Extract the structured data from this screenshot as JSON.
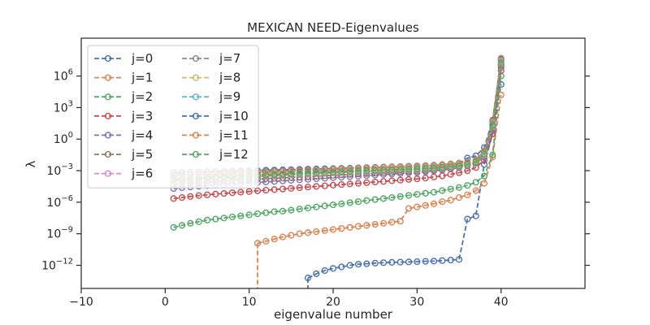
{
  "chart_data": {
    "type": "line",
    "title": "MEXICAN NEED-Eigenvalues",
    "xlabel": "eigenvalue number",
    "ylabel": "λ",
    "yscale": "log",
    "xlim": [
      -10,
      50
    ],
    "ylim_log10": [
      -14.2,
      9.6
    ],
    "x_ticks": [
      -10,
      0,
      10,
      20,
      30,
      40
    ],
    "x_tick_labels": [
      "−10",
      "0",
      "10",
      "20",
      "30",
      "40"
    ],
    "y_ticks_log10": [
      -12,
      -9,
      -6,
      -3,
      0,
      3,
      6
    ],
    "y_tick_labels": [
      {
        "base": "10",
        "exp": "−12"
      },
      {
        "base": "10",
        "exp": "−9"
      },
      {
        "base": "10",
        "exp": "−6"
      },
      {
        "base": "10",
        "exp": "−3"
      },
      {
        "base": "10",
        "exp": "0"
      },
      {
        "base": "10",
        "exp": "3"
      },
      {
        "base": "10",
        "exp": "6"
      }
    ],
    "grid": false,
    "legend_position": "upper-left",
    "legend_columns": 2,
    "marker": "open-circle",
    "line_style": "dashed",
    "series": [
      {
        "name": "j=0",
        "color": "#4c72b0",
        "x": [
          17,
          18,
          19,
          20,
          21,
          22,
          23,
          24,
          25,
          26,
          27,
          28,
          29,
          30,
          31,
          32,
          33,
          34,
          35,
          36,
          37,
          38,
          39,
          40
        ],
        "log10_values": [
          -13.2,
          -12.8,
          -12.5,
          -12.3,
          -12.15,
          -12.0,
          -11.9,
          -11.85,
          -11.8,
          -11.75,
          -11.72,
          -11.7,
          -11.68,
          -11.65,
          -11.62,
          -11.6,
          -11.55,
          -11.5,
          -11.45,
          -7.6,
          -7.3,
          -2.4,
          0.5,
          5.2
        ]
      },
      {
        "name": "j=1",
        "color": "#dd8452",
        "x": [
          11,
          12,
          13,
          14,
          15,
          16,
          17,
          18,
          19,
          20,
          21,
          22,
          23,
          24,
          25,
          26,
          27,
          28,
          29,
          30,
          31,
          32,
          33,
          34,
          35,
          36,
          37,
          38,
          39,
          40
        ],
        "log10_values": [
          -9.9,
          -9.7,
          -9.5,
          -9.3,
          -9.15,
          -9.0,
          -8.9,
          -8.8,
          -8.7,
          -8.6,
          -8.5,
          -8.4,
          -8.3,
          -8.2,
          -8.1,
          -8.0,
          -7.9,
          -7.8,
          -6.6,
          -6.45,
          -6.3,
          -6.15,
          -5.95,
          -5.8,
          -5.55,
          -5.3,
          -4.9,
          -4.2,
          -1.7,
          4.2
        ]
      },
      {
        "name": "j=2",
        "color": "#55a868",
        "x": [
          1,
          2,
          3,
          4,
          5,
          6,
          7,
          8,
          9,
          10,
          11,
          12,
          13,
          14,
          15,
          16,
          17,
          18,
          19,
          20,
          21,
          22,
          23,
          24,
          25,
          26,
          27,
          28,
          29,
          30,
          31,
          32,
          33,
          34,
          35,
          36,
          37,
          38,
          39,
          40
        ],
        "log10_values": [
          -8.4,
          -8.2,
          -8.0,
          -7.85,
          -7.7,
          -7.6,
          -7.5,
          -7.4,
          -7.3,
          -7.2,
          -7.1,
          -7.0,
          -6.9,
          -6.85,
          -6.75,
          -6.65,
          -6.55,
          -6.45,
          -6.35,
          -6.25,
          -6.15,
          -6.05,
          -5.95,
          -5.85,
          -5.75,
          -5.65,
          -5.55,
          -5.45,
          -5.35,
          -5.25,
          -5.15,
          -5.05,
          -4.9,
          -4.75,
          -4.6,
          -4.4,
          -4.1,
          -3.5,
          -1.5,
          6.0
        ]
      },
      {
        "name": "j=3",
        "color": "#c44e52",
        "x": [
          1,
          2,
          3,
          4,
          5,
          6,
          7,
          8,
          9,
          10,
          11,
          12,
          13,
          14,
          15,
          16,
          17,
          18,
          19,
          20,
          21,
          22,
          23,
          24,
          25,
          26,
          27,
          28,
          29,
          30,
          31,
          32,
          33,
          34,
          35,
          36,
          37,
          38,
          39,
          40
        ],
        "log10_values": [
          -5.65,
          -5.55,
          -5.45,
          -5.37,
          -5.3,
          -5.23,
          -5.17,
          -5.1,
          -5.04,
          -4.98,
          -4.92,
          -4.86,
          -4.8,
          -4.74,
          -4.68,
          -4.62,
          -4.56,
          -4.5,
          -4.44,
          -4.38,
          -4.32,
          -4.26,
          -4.2,
          -4.14,
          -4.08,
          -4.02,
          -3.96,
          -3.9,
          -3.84,
          -3.78,
          -3.7,
          -3.6,
          -3.5,
          -3.35,
          -3.2,
          -3.0,
          -2.7,
          -2.0,
          0.5,
          6.5
        ]
      },
      {
        "name": "j=4",
        "color": "#8172b3",
        "x": [
          1,
          2,
          3,
          4,
          5,
          6,
          7,
          8,
          9,
          10,
          11,
          12,
          13,
          14,
          15,
          16,
          17,
          18,
          19,
          20,
          21,
          22,
          23,
          24,
          25,
          26,
          27,
          28,
          29,
          30,
          31,
          32,
          33,
          34,
          35,
          36,
          37,
          38,
          39,
          40
        ],
        "log10_values": [
          -4.7,
          -4.62,
          -4.55,
          -4.48,
          -4.42,
          -4.37,
          -4.32,
          -4.27,
          -4.22,
          -4.17,
          -4.12,
          -4.07,
          -4.02,
          -3.97,
          -3.92,
          -3.87,
          -3.82,
          -3.77,
          -3.72,
          -3.67,
          -3.62,
          -3.57,
          -3.52,
          -3.47,
          -3.42,
          -3.37,
          -3.32,
          -3.27,
          -3.22,
          -3.17,
          -3.1,
          -3.02,
          -2.94,
          -2.85,
          -2.72,
          -2.55,
          -2.3,
          -1.7,
          0.8,
          6.8
        ]
      },
      {
        "name": "j=5",
        "color": "#937860",
        "x": [
          1,
          2,
          3,
          4,
          5,
          6,
          7,
          8,
          9,
          10,
          11,
          12,
          13,
          14,
          15,
          16,
          17,
          18,
          19,
          20,
          21,
          22,
          23,
          24,
          25,
          26,
          27,
          28,
          29,
          30,
          31,
          32,
          33,
          34,
          35,
          36,
          37,
          38,
          39,
          40
        ],
        "log10_values": [
          -4.3,
          -4.24,
          -4.18,
          -4.13,
          -4.08,
          -4.03,
          -3.98,
          -3.93,
          -3.88,
          -3.84,
          -3.8,
          -3.76,
          -3.72,
          -3.68,
          -3.64,
          -3.6,
          -3.56,
          -3.52,
          -3.48,
          -3.44,
          -3.4,
          -3.36,
          -3.32,
          -3.28,
          -3.24,
          -3.2,
          -3.16,
          -3.12,
          -3.08,
          -3.04,
          -2.98,
          -2.92,
          -2.85,
          -2.77,
          -2.66,
          -2.5,
          -2.25,
          -1.6,
          1.0,
          7.0
        ]
      },
      {
        "name": "j=6",
        "color": "#da8bc3",
        "x": [
          1,
          2,
          3,
          4,
          5,
          6,
          7,
          8,
          9,
          10,
          11,
          12,
          13,
          14,
          15,
          16,
          17,
          18,
          19,
          20,
          21,
          22,
          23,
          24,
          25,
          26,
          27,
          28,
          29,
          30,
          31,
          32,
          33,
          34,
          35,
          36,
          37,
          38,
          39,
          40
        ],
        "log10_values": [
          -4.0,
          -3.95,
          -3.9,
          -3.85,
          -3.8,
          -3.76,
          -3.72,
          -3.68,
          -3.64,
          -3.6,
          -3.56,
          -3.52,
          -3.48,
          -3.44,
          -3.4,
          -3.36,
          -3.32,
          -3.28,
          -3.25,
          -3.22,
          -3.19,
          -3.16,
          -3.13,
          -3.1,
          -3.07,
          -3.04,
          -3.01,
          -2.98,
          -2.95,
          -2.92,
          -2.88,
          -2.83,
          -2.77,
          -2.7,
          -2.6,
          -2.45,
          -2.2,
          -1.5,
          1.2,
          7.2
        ]
      },
      {
        "name": "j=7",
        "color": "#8c8c8c",
        "x": [
          1,
          2,
          3,
          4,
          5,
          6,
          7,
          8,
          9,
          10,
          11,
          12,
          13,
          14,
          15,
          16,
          17,
          18,
          19,
          20,
          21,
          22,
          23,
          24,
          25,
          26,
          27,
          28,
          29,
          30,
          31,
          32,
          33,
          34,
          35,
          36,
          37,
          38,
          39,
          40
        ],
        "log10_values": [
          -3.8,
          -3.75,
          -3.7,
          -3.66,
          -3.62,
          -3.58,
          -3.54,
          -3.5,
          -3.46,
          -3.43,
          -3.4,
          -3.37,
          -3.34,
          -3.31,
          -3.28,
          -3.25,
          -3.22,
          -3.19,
          -3.16,
          -3.13,
          -3.1,
          -3.07,
          -3.04,
          -3.01,
          -2.98,
          -2.95,
          -2.92,
          -2.89,
          -2.86,
          -2.83,
          -2.79,
          -2.74,
          -2.68,
          -2.61,
          -2.52,
          -2.38,
          -2.15,
          -1.4,
          1.4,
          7.3
        ]
      },
      {
        "name": "j=8",
        "color": "#ccb974",
        "x": [
          1,
          2,
          3,
          4,
          5,
          6,
          7,
          8,
          9,
          10,
          11,
          12,
          13,
          14,
          15,
          16,
          17,
          18,
          19,
          20,
          21,
          22,
          23,
          24,
          25,
          26,
          27,
          28,
          29,
          30,
          31,
          32,
          33,
          34,
          35,
          36,
          37,
          38,
          39,
          40
        ],
        "log10_values": [
          -3.65,
          -3.6,
          -3.56,
          -3.52,
          -3.48,
          -3.44,
          -3.4,
          -3.37,
          -3.34,
          -3.31,
          -3.28,
          -3.25,
          -3.22,
          -3.19,
          -3.16,
          -3.13,
          -3.1,
          -3.07,
          -3.04,
          -3.01,
          -2.98,
          -2.95,
          -2.92,
          -2.89,
          -2.86,
          -2.83,
          -2.8,
          -2.77,
          -2.74,
          -2.71,
          -2.67,
          -2.63,
          -2.58,
          -2.52,
          -2.44,
          -2.32,
          -2.1,
          -1.3,
          1.5,
          7.4
        ]
      },
      {
        "name": "j=9",
        "color": "#64b5cd",
        "x": [
          1,
          2,
          3,
          4,
          5,
          6,
          7,
          8,
          9,
          10,
          11,
          12,
          13,
          14,
          15,
          16,
          17,
          18,
          19,
          20,
          21,
          22,
          23,
          24,
          25,
          26,
          27,
          28,
          29,
          30,
          31,
          32,
          33,
          34,
          35,
          36,
          37,
          38,
          39,
          40
        ],
        "log10_values": [
          -3.4,
          -3.37,
          -3.34,
          -3.31,
          -3.28,
          -3.25,
          -3.22,
          -3.19,
          -3.16,
          -3.13,
          -3.1,
          -3.07,
          -3.04,
          -3.01,
          -2.98,
          -2.95,
          -2.92,
          -2.89,
          -2.86,
          -2.83,
          -2.8,
          -2.77,
          -2.74,
          -2.71,
          -2.68,
          -2.65,
          -2.62,
          -2.59,
          -2.56,
          -2.53,
          -2.5,
          -2.46,
          -2.41,
          -2.35,
          -2.27,
          -2.15,
          -1.95,
          -1.2,
          1.6,
          7.5
        ]
      },
      {
        "name": "j=10",
        "color": "#4c72b0",
        "x": [
          1,
          2,
          3,
          4,
          5,
          6,
          7,
          8,
          9,
          10,
          11,
          12,
          13,
          14,
          15,
          16,
          17,
          18,
          19,
          20,
          21,
          22,
          23,
          24,
          25,
          26,
          27,
          28,
          29,
          30,
          31,
          32,
          33,
          34,
          35,
          36,
          37,
          38,
          39,
          40
        ],
        "log10_values": [
          -3.2,
          -3.17,
          -3.14,
          -3.12,
          -3.1,
          -3.08,
          -3.06,
          -3.04,
          -3.02,
          -3.0,
          -2.98,
          -2.96,
          -2.94,
          -2.92,
          -2.9,
          -2.88,
          -2.86,
          -2.84,
          -2.82,
          -2.8,
          -2.78,
          -2.76,
          -2.74,
          -2.72,
          -2.7,
          -2.68,
          -2.66,
          -2.64,
          -2.62,
          -2.6,
          -2.56,
          -2.52,
          -2.47,
          -2.4,
          -2.32,
          -1.8,
          -1.6,
          -0.8,
          1.8,
          7.6
        ]
      },
      {
        "name": "j=11",
        "color": "#dd8452",
        "x": [
          1,
          2,
          3,
          4,
          5,
          6,
          7,
          8,
          9,
          10,
          11,
          12,
          13,
          14,
          15,
          16,
          17,
          18,
          19,
          20,
          21,
          22,
          23,
          24,
          25,
          26,
          27,
          28,
          29,
          30,
          31,
          32,
          33,
          34,
          35,
          36,
          37,
          38,
          39,
          40
        ],
        "log10_values": [
          -3.5,
          -3.46,
          -3.42,
          -3.38,
          -3.34,
          -3.3,
          -3.27,
          -3.24,
          -3.21,
          -3.18,
          -3.15,
          -3.12,
          -3.09,
          -3.06,
          -3.03,
          -3.0,
          -2.97,
          -2.94,
          -2.91,
          -2.88,
          -2.85,
          -2.82,
          -2.79,
          -2.76,
          -2.73,
          -2.7,
          -2.67,
          -2.64,
          -2.61,
          -2.58,
          -2.54,
          -2.5,
          -2.45,
          -2.38,
          -2.3,
          -2.18,
          -1.98,
          -1.1,
          1.7,
          7.7
        ]
      },
      {
        "name": "j=12",
        "color": "#55a868",
        "x": [
          1,
          2,
          3,
          4,
          5,
          6,
          7,
          8,
          9,
          10,
          11,
          12,
          13,
          14,
          15,
          16,
          17,
          18,
          19,
          20,
          21,
          22,
          23,
          24,
          25,
          26,
          27,
          28,
          29,
          30,
          31,
          32,
          33,
          34,
          35,
          36,
          37,
          38,
          39,
          40
        ],
        "log10_values": [
          -3.9,
          -3.85,
          -3.8,
          -3.76,
          -3.72,
          -3.68,
          -3.64,
          -3.6,
          -3.56,
          -3.52,
          -3.48,
          -3.44,
          -3.4,
          -3.36,
          -3.32,
          -3.28,
          -3.24,
          -3.2,
          -3.17,
          -3.14,
          -3.11,
          -3.08,
          -3.05,
          -3.02,
          -2.99,
          -2.96,
          -2.93,
          -2.9,
          -2.87,
          -2.84,
          -2.8,
          -2.75,
          -2.7,
          -2.63,
          -2.54,
          -2.4,
          -2.18,
          -1.4,
          1.3,
          7.1
        ]
      }
    ]
  }
}
